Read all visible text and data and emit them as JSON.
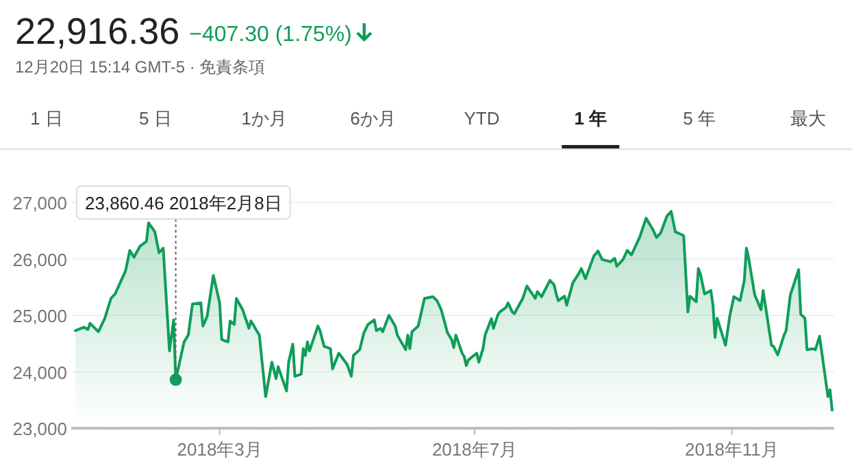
{
  "chart_data": {
    "type": "area",
    "title": "22,916.36",
    "subtitle": "−407.30 (1.75%)",
    "annotations": [
      "12月20日 15:14 GMT-5 · 免責条項",
      "1 日",
      "5 日",
      "1か月",
      "6か月",
      "YTD",
      "1 年",
      "5 年",
      "最大",
      {
        "text": "23,860.46  2018年2月8日",
        "x": "2018-02-08",
        "y": 23860
      }
    ],
    "x": [
      "2017-12-22",
      "2017-12-26",
      "2017-12-28",
      "2017-12-29",
      "2018-01-02",
      "2018-01-05",
      "2018-01-08",
      "2018-01-10",
      "2018-01-15",
      "2018-01-17",
      "2018-01-19",
      "2018-01-22",
      "2018-01-25",
      "2018-01-26",
      "2018-01-29",
      "2018-01-31",
      "2018-02-02",
      "2018-02-05",
      "2018-02-07",
      "2018-02-08",
      "2018-02-12",
      "2018-02-14",
      "2018-02-16",
      "2018-02-20",
      "2018-02-21",
      "2018-02-23",
      "2018-02-26",
      "2018-03-01",
      "2018-03-02",
      "2018-03-05",
      "2018-03-06",
      "2018-03-08",
      "2018-03-09",
      "2018-03-12",
      "2018-03-15",
      "2018-03-16",
      "2018-03-19",
      "2018-03-20",
      "2018-03-23",
      "2018-03-26",
      "2018-03-28",
      "2018-03-29",
      "2018-04-02",
      "2018-04-03",
      "2018-04-05",
      "2018-04-06",
      "2018-04-09",
      "2018-04-10",
      "2018-04-11",
      "2018-04-12",
      "2018-04-13",
      "2018-04-17",
      "2018-04-18",
      "2018-04-20",
      "2018-04-23",
      "2018-04-24",
      "2018-04-27",
      "2018-05-01",
      "2018-05-03",
      "2018-05-04",
      "2018-05-07",
      "2018-05-09",
      "2018-05-11",
      "2018-05-14",
      "2018-05-15",
      "2018-05-17",
      "2018-05-18",
      "2018-05-21",
      "2018-05-24",
      "2018-05-25",
      "2018-05-29",
      "2018-05-30",
      "2018-05-31",
      "2018-06-01",
      "2018-06-04",
      "2018-06-06",
      "2018-06-07",
      "2018-06-11",
      "2018-06-13",
      "2018-06-15",
      "2018-06-18",
      "2018-06-20",
      "2018-06-21",
      "2018-06-22",
      "2018-06-25",
      "2018-06-26",
      "2018-06-27",
      "2018-06-28",
      "2018-07-02",
      "2018-07-03",
      "2018-07-05",
      "2018-07-06",
      "2018-07-09",
      "2018-07-10",
      "2018-07-12",
      "2018-07-13",
      "2018-07-16",
      "2018-07-17",
      "2018-07-19",
      "2018-07-20",
      "2018-07-24",
      "2018-07-26",
      "2018-07-30",
      "2018-07-31",
      "2018-08-02",
      "2018-08-06",
      "2018-08-08",
      "2018-08-09",
      "2018-08-10",
      "2018-08-13",
      "2018-08-14",
      "2018-08-17",
      "2018-08-20",
      "2018-08-21",
      "2018-08-23",
      "2018-08-27",
      "2018-08-29",
      "2018-08-31",
      "2018-09-04",
      "2018-09-06",
      "2018-09-07",
      "2018-09-10",
      "2018-09-12",
      "2018-09-14",
      "2018-09-18",
      "2018-09-21",
      "2018-09-24",
      "2018-09-26",
      "2018-09-28",
      "2018-10-01",
      "2018-10-03",
      "2018-10-05",
      "2018-10-08",
      "2018-10-09",
      "2018-10-11",
      "2018-10-12",
      "2018-10-15",
      "2018-10-16",
      "2018-10-17",
      "2018-10-19",
      "2018-10-22",
      "2018-10-23",
      "2018-10-24",
      "2018-10-25",
      "2018-10-29",
      "2018-10-31",
      "2018-11-02",
      "2018-11-05",
      "2018-11-07",
      "2018-11-08",
      "2018-11-09",
      "2018-11-12",
      "2018-11-15",
      "2018-11-16",
      "2018-11-20",
      "2018-11-21",
      "2018-11-23",
      "2018-11-26",
      "2018-11-27",
      "2018-11-29",
      "2018-12-03",
      "2018-12-04",
      "2018-12-06",
      "2018-12-07",
      "2018-12-10",
      "2018-12-11",
      "2018-12-13",
      "2018-12-17",
      "2018-12-18",
      "2018-12-19"
    ],
    "series": [
      {
        "color": "#0f9d58",
        "values": [
          24730,
          24790,
          24750,
          24860,
          24710,
          24940,
          25300,
          25380,
          25790,
          26150,
          26030,
          26230,
          26310,
          26640,
          26480,
          26110,
          26190,
          24370,
          24920,
          23860,
          24530,
          24650,
          25200,
          25220,
          24810,
          24980,
          25710,
          25220,
          24570,
          24530,
          24900,
          24840,
          25300,
          25100,
          24770,
          24900,
          24710,
          24650,
          23560,
          24170,
          23880,
          24090,
          23660,
          24170,
          24490,
          23920,
          23960,
          24410,
          24290,
          24530,
          24370,
          24810,
          24730,
          24450,
          24410,
          24050,
          24330,
          24130,
          23920,
          24290,
          24390,
          24690,
          24840,
          24920,
          24730,
          24770,
          24710,
          25000,
          24810,
          24650,
          24390,
          24650,
          24410,
          24710,
          24810,
          25140,
          25300,
          25330,
          25260,
          25100,
          24690,
          24570,
          24430,
          24650,
          24330,
          24270,
          24110,
          24210,
          24330,
          24170,
          24410,
          24650,
          24940,
          24770,
          25000,
          25060,
          25140,
          25220,
          25060,
          25030,
          25300,
          25520,
          25300,
          25420,
          25330,
          25620,
          25540,
          25380,
          25260,
          25340,
          25180,
          25580,
          25750,
          25830,
          25650,
          26050,
          26140,
          25990,
          25950,
          26010,
          25870,
          25990,
          26150,
          26070,
          26390,
          26720,
          26540,
          26380,
          26460,
          26760,
          26840,
          26480,
          26430,
          26410,
          25060,
          25340,
          25240,
          25830,
          25730,
          25380,
          25440,
          25180,
          24610,
          24950,
          24470,
          24980,
          25330,
          25260,
          25620,
          26190,
          26030,
          25360,
          25100,
          25440,
          24470,
          24450,
          24300,
          24650,
          24730,
          25360,
          25810,
          25020,
          24950,
          24390,
          24410,
          24390,
          24630,
          23560,
          23680,
          23320
        ]
      }
    ],
    "xlim": [
      "2017-12-20",
      "2018-12-20"
    ],
    "xticks": [
      {
        "value": "2018-03-01",
        "label": "2018年3月"
      },
      {
        "value": "2018-07-01",
        "label": "2018年7月"
      },
      {
        "value": "2018-11-01",
        "label": "2018年11月"
      }
    ],
    "ylim": [
      23000,
      27000
    ],
    "yticks": [
      {
        "value": 23000,
        "label": "23,000"
      },
      {
        "value": 24000,
        "label": "24,000"
      },
      {
        "value": 25000,
        "label": "25,000"
      },
      {
        "value": 26000,
        "label": "26,000"
      },
      {
        "value": 27000,
        "label": "27,000"
      }
    ],
    "grid": "y",
    "marker": "none",
    "line_style": "solid"
  }
}
